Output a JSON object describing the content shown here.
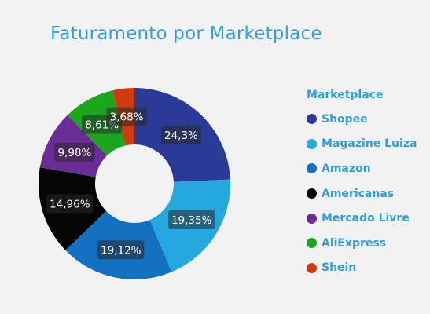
{
  "chart_data": {
    "type": "pie",
    "title": "Faturamento por Marketplace",
    "legend_title": "Marketplace",
    "legend_position": "right",
    "slices": [
      {
        "name": "Shopee",
        "value": 24.3,
        "label": "24,3%",
        "color": "#2b3a97"
      },
      {
        "name": "Magazine Luiza",
        "value": 19.35,
        "label": "19,35%",
        "color": "#25a8e0"
      },
      {
        "name": "Amazon",
        "value": 19.12,
        "label": "19,12%",
        "color": "#1271c1"
      },
      {
        "name": "Americanas",
        "value": 14.96,
        "label": "14,96%",
        "color": "#050505"
      },
      {
        "name": "Mercado Livre",
        "value": 9.98,
        "label": "9,98%",
        "color": "#6a2c96"
      },
      {
        "name": "AliExpress",
        "value": 8.61,
        "label": "8,61%",
        "color": "#1aa71e"
      },
      {
        "name": "Shein",
        "value": 3.68,
        "label": "3,68%",
        "color": "#cf3a0e"
      }
    ]
  }
}
